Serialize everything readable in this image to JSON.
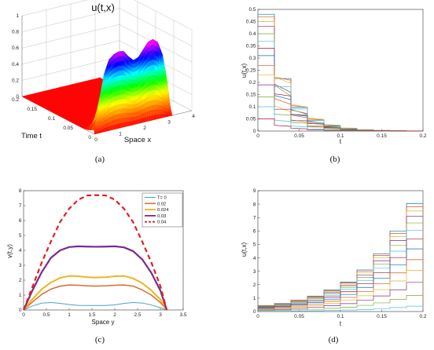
{
  "chart_data": [
    {
      "panel": "a",
      "type": "surface",
      "caption": "(a)",
      "title": "u(t,x)",
      "xlabel": "Space x",
      "ylabel": "Time t",
      "x_ticks": [
        "0",
        "1",
        "2",
        "3",
        "4"
      ],
      "t_ticks": [
        "0.2",
        "0.15",
        "0.1",
        "0.05",
        "0"
      ],
      "z_ticks": [
        "0",
        "0.2",
        "0.4",
        "0.6",
        "0.8",
        "1"
      ],
      "xlim": [
        0,
        4
      ],
      "tlim": [
        0,
        0.2
      ],
      "zlim": [
        0,
        1
      ],
      "profile_x": [
        0,
        0.2,
        0.4,
        0.6,
        0.8,
        1.0,
        1.2,
        1.4,
        1.6,
        1.8,
        2.0,
        2.2,
        2.4,
        2.6,
        2.8,
        3.0,
        3.14
      ],
      "profile_u": [
        0.05,
        0.4,
        0.72,
        0.88,
        0.93,
        0.95,
        0.94,
        0.86,
        0.8,
        0.82,
        0.9,
        0.98,
        1.0,
        0.95,
        0.78,
        0.42,
        0.05
      ],
      "colormap": [
        "#ff0000",
        "#ff8000",
        "#ffff00",
        "#00ff00",
        "#00ffff",
        "#0000ff",
        "#ff00ff"
      ]
    },
    {
      "panel": "b",
      "type": "line",
      "caption": "(b)",
      "xlabel": "t",
      "ylabel": "u(t,x)",
      "xlim": [
        0,
        0.2
      ],
      "ylim": [
        0,
        0.5
      ],
      "x_ticks": [
        "0",
        "0.05",
        "0.1",
        "0.15",
        "0.2"
      ],
      "y_ticks": [
        "0",
        "0.05",
        "0.1",
        "0.15",
        "0.2",
        "0.25",
        "0.3",
        "0.35",
        "0.4",
        "0.45",
        "0.5"
      ],
      "step_width": 0.02,
      "initial_levels": [
        0.48,
        0.47,
        0.45,
        0.43,
        0.4,
        0.37,
        0.34,
        0.31,
        0.27,
        0.23,
        0.19,
        0.14,
        0.1,
        0.05
      ],
      "decay_per_step": 0.45
    },
    {
      "panel": "c",
      "type": "line",
      "caption": "(c)",
      "xlabel": "Space y",
      "ylabel": "v(t,y)",
      "xlim": [
        0,
        3.5
      ],
      "ylim": [
        0,
        8
      ],
      "x_ticks": [
        "0",
        "0.5",
        "1",
        "1.5",
        "2",
        "2.5",
        "3",
        "3.5"
      ],
      "y_ticks": [
        "0",
        "1",
        "2",
        "3",
        "4",
        "5",
        "6",
        "7",
        "8"
      ],
      "x": [
        0,
        0.2,
        0.4,
        0.6,
        0.8,
        1.0,
        1.2,
        1.4,
        1.57,
        1.8,
        2.0,
        2.2,
        2.4,
        2.6,
        2.8,
        3.0,
        3.14
      ],
      "series": [
        {
          "name": "T= 0",
          "color": "#4aa3c7",
          "width": 1,
          "values": [
            0,
            0.28,
            0.46,
            0.5,
            0.45,
            0.36,
            0.31,
            0.3,
            0.3,
            0.3,
            0.34,
            0.44,
            0.5,
            0.47,
            0.34,
            0.15,
            0
          ]
        },
        {
          "name": "0.02",
          "color": "#d96c2a",
          "width": 1.5,
          "values": [
            0,
            0.55,
            1.05,
            1.4,
            1.6,
            1.68,
            1.66,
            1.62,
            1.6,
            1.62,
            1.66,
            1.68,
            1.6,
            1.35,
            1.0,
            0.5,
            0
          ]
        },
        {
          "name": "0.024",
          "color": "#f2b31b",
          "width": 2,
          "values": [
            0,
            0.75,
            1.4,
            1.85,
            2.15,
            2.28,
            2.26,
            2.2,
            2.18,
            2.2,
            2.26,
            2.28,
            2.12,
            1.8,
            1.32,
            0.7,
            0
          ]
        },
        {
          "name": "0.03",
          "color": "#7b2a8f",
          "width": 2.2,
          "values": [
            0,
            1.35,
            2.55,
            3.5,
            4.0,
            4.22,
            4.27,
            4.25,
            4.24,
            4.25,
            4.27,
            4.2,
            3.95,
            3.4,
            2.5,
            1.3,
            0
          ]
        },
        {
          "name": "0.04",
          "color": "#e02020",
          "width": 2.2,
          "dash": "6,4",
          "values": [
            0,
            1.6,
            3.2,
            4.6,
            5.9,
            6.8,
            7.4,
            7.68,
            7.7,
            7.68,
            7.4,
            6.8,
            5.9,
            4.6,
            3.2,
            1.6,
            0
          ]
        }
      ]
    },
    {
      "panel": "d",
      "type": "line",
      "caption": "(d)",
      "xlabel": "t",
      "ylabel": "u(t,x)",
      "xlim": [
        0,
        0.2
      ],
      "ylim": [
        0,
        9
      ],
      "x_ticks": [
        "0",
        "0.05",
        "0.1",
        "0.15",
        "0.2"
      ],
      "y_ticks": [
        "0",
        "1",
        "2",
        "3",
        "4",
        "5",
        "6",
        "7",
        "8",
        "9"
      ],
      "step_width": 0.02,
      "top_levels": [
        0.45,
        0.6,
        0.85,
        1.15,
        1.6,
        2.2,
        3.1,
        4.3,
        6.0,
        8.05
      ],
      "curve_fractions": [
        1.0,
        0.97,
        0.93,
        0.88,
        0.82,
        0.75,
        0.67,
        0.58,
        0.48,
        0.38,
        0.27,
        0.15,
        0.05
      ]
    }
  ]
}
